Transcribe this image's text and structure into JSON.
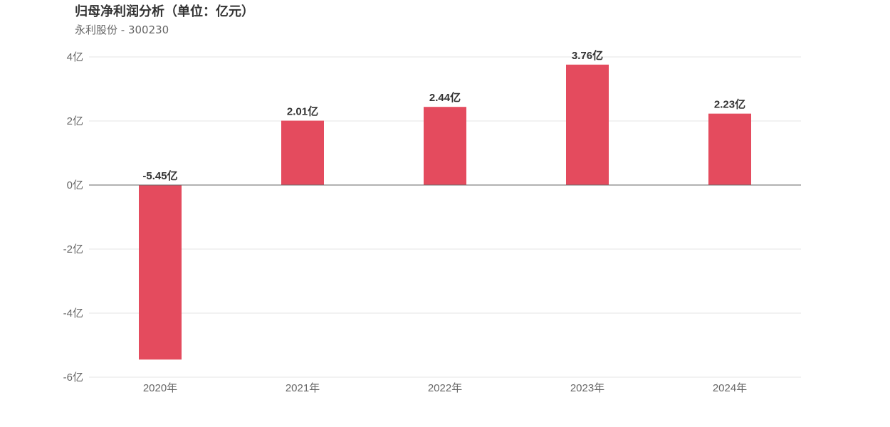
{
  "title": "归母净利润分析（单位：亿元）",
  "subtitle": "永利股份 - 300230",
  "colors": {
    "bar": "#e44b5e",
    "grid": "#e6e6e6",
    "zero_line": "#666666",
    "tick_text": "#666666",
    "value_text": "#333333"
  },
  "chart_data": {
    "type": "bar",
    "categories": [
      "2020年",
      "2021年",
      "2022年",
      "2023年",
      "2024年"
    ],
    "values": [
      -5.45,
      2.01,
      2.44,
      3.76,
      2.23
    ],
    "value_labels": [
      "-5.45亿",
      "2.01亿",
      "2.44亿",
      "3.76亿",
      "2.23亿"
    ],
    "y_ticks": [
      4,
      2,
      0,
      -2,
      -4,
      -6
    ],
    "y_tick_labels": [
      "4亿",
      "2亿",
      "0亿",
      "-2亿",
      "-4亿",
      "-6亿"
    ],
    "ylim": [
      -6,
      4
    ],
    "grid": true,
    "legend": "none"
  }
}
